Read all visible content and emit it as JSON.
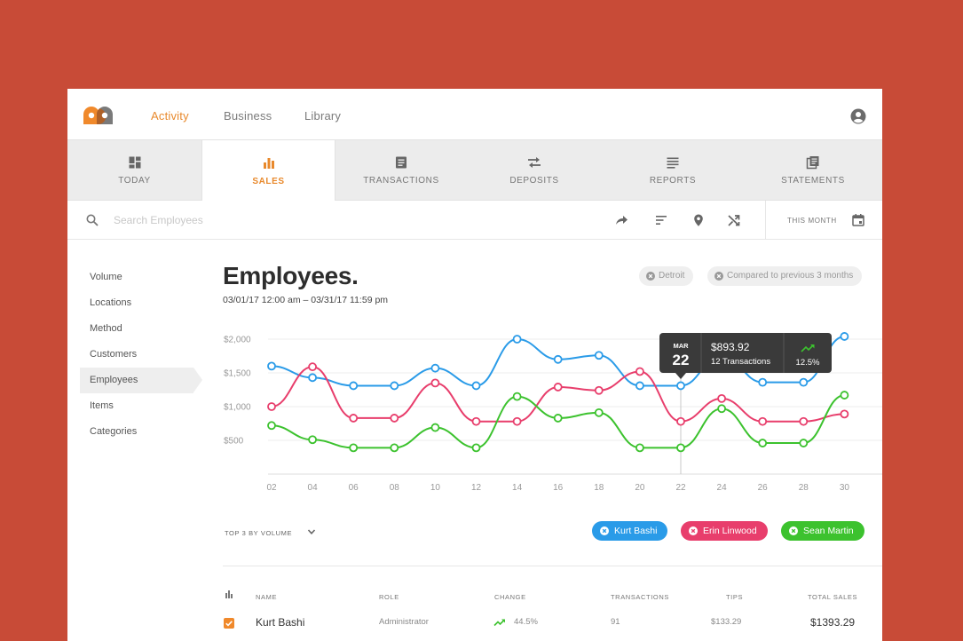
{
  "nav": {
    "links": [
      "Activity",
      "Business",
      "Library"
    ],
    "active": "Activity"
  },
  "tabs": [
    {
      "label": "TODAY",
      "icon": "dashboard-icon"
    },
    {
      "label": "SALES",
      "icon": "bar-chart-icon",
      "active": true
    },
    {
      "label": "TRANSACTIONS",
      "icon": "receipt-icon"
    },
    {
      "label": "DEPOSITS",
      "icon": "swap-arrows-icon"
    },
    {
      "label": "REPORTS",
      "icon": "list-lines-icon"
    },
    {
      "label": "STATEMENTS",
      "icon": "documents-icon"
    }
  ],
  "search": {
    "placeholder": "Search Employees",
    "period_label": "THIS MONTH"
  },
  "sidebar": {
    "items": [
      "Volume",
      "Locations",
      "Method",
      "Customers",
      "Employees",
      "Items",
      "Categories"
    ],
    "active": "Employees"
  },
  "header": {
    "title": "Employees.",
    "date_range": "03/01/17 12:00 am – 03/31/17 11:59 pm",
    "filters": [
      "Detroit",
      "Compared to previous 3 months"
    ]
  },
  "tooltip": {
    "month": "MAR",
    "day": "22",
    "amount": "$893.92",
    "transactions": "12 Transactions",
    "change": "12.5%"
  },
  "chart_data": {
    "type": "line",
    "x": [
      "02",
      "04",
      "06",
      "08",
      "10",
      "12",
      "14",
      "16",
      "18",
      "20",
      "22",
      "24",
      "26",
      "28",
      "30"
    ],
    "y_ticks": [
      "$2,000",
      "$1,500",
      "$1,000",
      "$500"
    ],
    "ylim": [
      0,
      2000
    ],
    "grid": true,
    "series": [
      {
        "name": "Kurt Bashi",
        "color": "#2a9be8",
        "values": [
          1600,
          1430,
          1310,
          1310,
          1570,
          1310,
          2000,
          1700,
          1760,
          1310,
          1310,
          1760,
          1360,
          1360,
          2040
        ]
      },
      {
        "name": "Erin Linwood",
        "color": "#e83e6c",
        "values": [
          1000,
          1590,
          830,
          830,
          1350,
          780,
          780,
          1290,
          1240,
          1520,
          780,
          1120,
          780,
          780,
          890
        ]
      },
      {
        "name": "Sean Martin",
        "color": "#3cc22e",
        "values": [
          720,
          510,
          390,
          390,
          690,
          390,
          1150,
          830,
          910,
          390,
          390,
          970,
          460,
          460,
          1170
        ]
      }
    ]
  },
  "legend": {
    "selector_label": "TOP 3 BY VOLUME",
    "pills": [
      {
        "name": "Kurt Bashi",
        "color": "#2a9be8"
      },
      {
        "name": "Erin Linwood",
        "color": "#e83e6c"
      },
      {
        "name": "Sean Martin",
        "color": "#3cc22e"
      }
    ]
  },
  "table": {
    "headers": [
      "NAME",
      "ROLE",
      "CHANGE",
      "TRANSACTIONS",
      "TIPS",
      "TOTAL SALES"
    ],
    "rows": [
      {
        "name": "Kurt Bashi",
        "role": "Administrator",
        "change": "44.5%",
        "transactions": "91",
        "tips": "$133.29",
        "total": "$1393.29"
      }
    ]
  },
  "colors": {
    "background": "#c84b37",
    "accent": "#e8892c"
  }
}
